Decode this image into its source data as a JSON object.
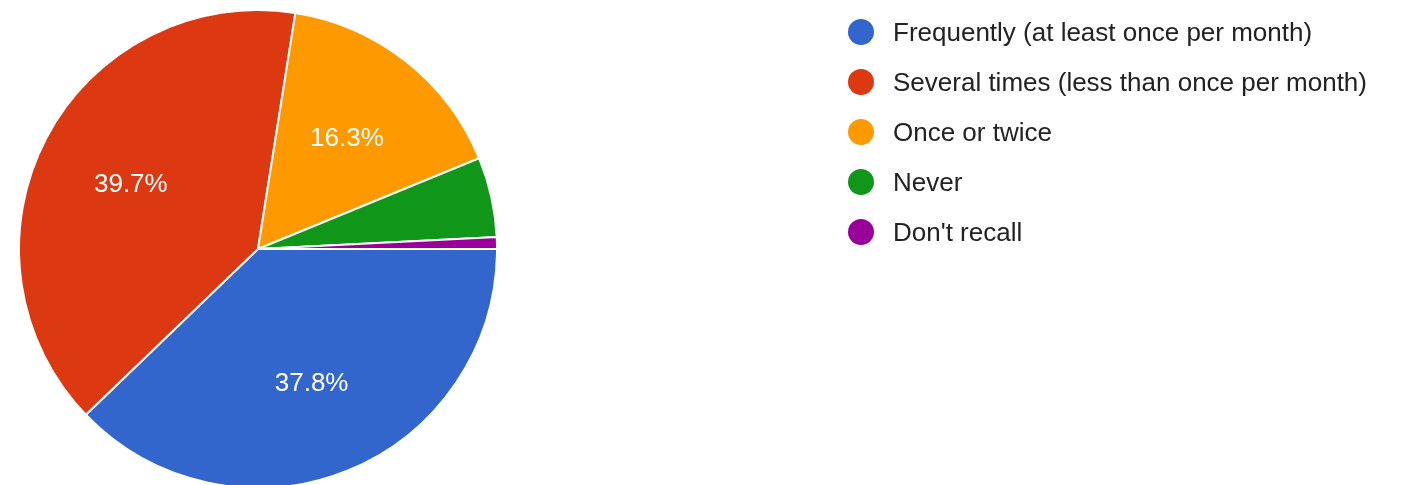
{
  "chart_data": {
    "type": "pie",
    "categories": [
      "Frequently (at least once per month)",
      "Several times (less than once per month)",
      "Once or twice",
      "Never",
      "Don't recall"
    ],
    "values": [
      37.8,
      39.7,
      16.3,
      5.4,
      0.8
    ],
    "colors": [
      "#3366cc",
      "#dc3912",
      "#ff9900",
      "#109618",
      "#990099"
    ],
    "value_labels": [
      "37.8%",
      "39.7%",
      "16.3%",
      null,
      null
    ],
    "legend": "top right"
  }
}
